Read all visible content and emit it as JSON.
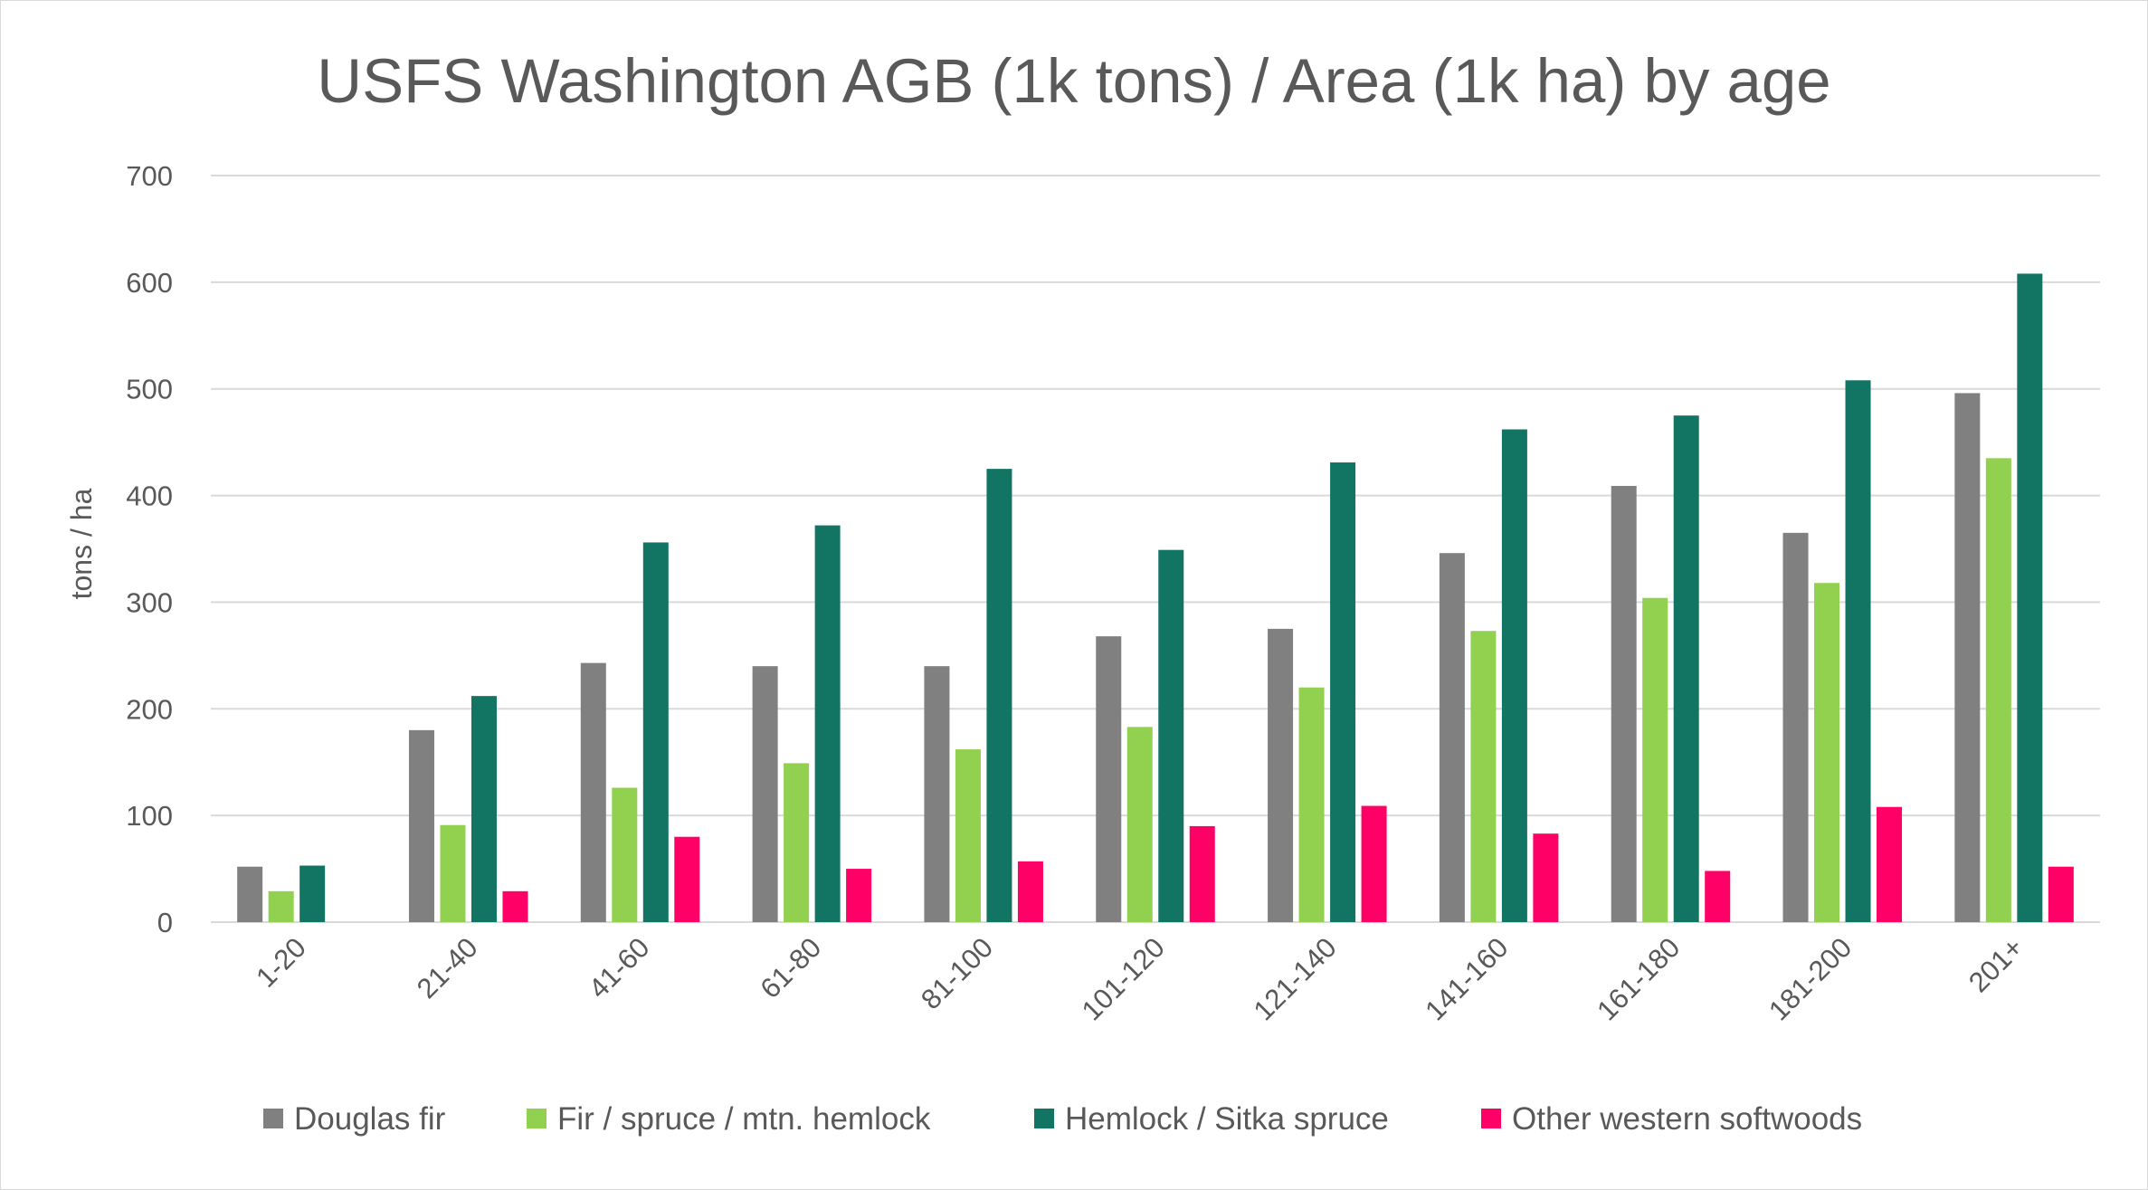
{
  "chart_data": {
    "type": "bar",
    "title": "USFS Washington AGB (1k tons) / Area (1k ha) by age",
    "xlabel": "",
    "ylabel": "tons / ha",
    "ylim": [
      0,
      700
    ],
    "yticks": [
      0,
      100,
      200,
      300,
      400,
      500,
      600,
      700
    ],
    "grid": true,
    "legend_position": "bottom",
    "categories": [
      "1-20",
      "21-40",
      "41-60",
      "61-80",
      "81-100",
      "101-120",
      "121-140",
      "141-160",
      "161-180",
      "181-200",
      "201+"
    ],
    "series": [
      {
        "name": "Douglas fir",
        "color": "#808080",
        "values": [
          52,
          180,
          243,
          240,
          240,
          268,
          275,
          346,
          409,
          365,
          496
        ]
      },
      {
        "name": "Fir / spruce / mtn. hemlock",
        "color": "#92d050",
        "values": [
          29,
          91,
          126,
          149,
          162,
          183,
          220,
          273,
          304,
          318,
          435
        ]
      },
      {
        "name": "Hemlock / Sitka spruce",
        "color": "#127564",
        "values": [
          53,
          212,
          356,
          372,
          425,
          349,
          431,
          462,
          475,
          508,
          608
        ]
      },
      {
        "name": "Other western softwoods",
        "color": "#ff0066",
        "values": [
          0,
          29,
          80,
          50,
          57,
          90,
          109,
          83,
          48,
          108,
          52
        ]
      }
    ]
  }
}
